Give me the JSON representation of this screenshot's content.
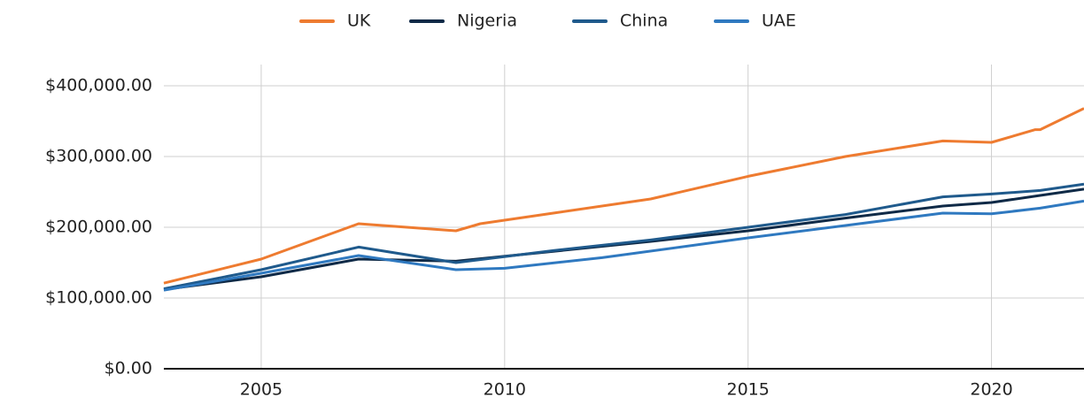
{
  "chart_data": {
    "type": "line",
    "series": [
      {
        "name": "UK",
        "color": "#ee7b30",
        "x": [
          2003,
          2005,
          2007,
          2009,
          2009.5,
          2011,
          2013,
          2015,
          2017,
          2019,
          2020,
          2020.9,
          2021,
          2021.9
        ],
        "values": [
          121000,
          155000,
          205000,
          195000,
          205000,
          220000,
          240000,
          272000,
          300000,
          322000,
          320000,
          338000,
          338000,
          368000
        ]
      },
      {
        "name": "Nigeria",
        "color": "#0f2a47",
        "x": [
          2003,
          2005,
          2007,
          2009,
          2011,
          2013,
          2015,
          2017,
          2019,
          2020,
          2021,
          2021.9
        ],
        "values": [
          112000,
          130000,
          155000,
          152000,
          166000,
          180000,
          195000,
          213000,
          230000,
          235000,
          245000,
          254000
        ]
      },
      {
        "name": "China",
        "color": "#1f5a8c",
        "x": [
          2003,
          2005,
          2007,
          2009,
          2011,
          2013,
          2015,
          2017,
          2019,
          2020,
          2021,
          2021.9
        ],
        "values": [
          113000,
          140000,
          172000,
          150000,
          167000,
          182000,
          200000,
          218000,
          243000,
          247000,
          252000,
          261000
        ]
      },
      {
        "name": "UAE",
        "color": "#2f79c0",
        "x": [
          2003,
          2005,
          2007,
          2009,
          2010,
          2012,
          2015,
          2019,
          2020,
          2021,
          2021.9
        ],
        "values": [
          111000,
          135000,
          160000,
          140000,
          142000,
          157000,
          185000,
          220000,
          219000,
          227000,
          237000
        ]
      }
    ],
    "xlim": [
      2003,
      2021.9
    ],
    "xticks": [
      2005,
      2010,
      2015,
      2020
    ],
    "ylim": [
      0,
      430000
    ],
    "yticks": [
      {
        "value": 0,
        "label": "$0.00"
      },
      {
        "value": 100000,
        "label": "$100,000.00"
      },
      {
        "value": 200000,
        "label": "$200,000.00"
      },
      {
        "value": 300000,
        "label": "$300,000.00"
      },
      {
        "value": 400000,
        "label": "$400,000.00"
      }
    ],
    "grid": true,
    "legend": "top"
  }
}
